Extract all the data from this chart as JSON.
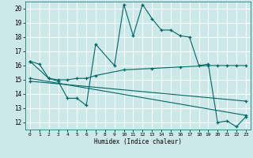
{
  "xlabel": "Humidex (Indice chaleur)",
  "bg_color": "#cce8e8",
  "grid_color": "#ffffff",
  "line_color": "#006666",
  "xlim": [
    -0.5,
    23.5
  ],
  "ylim": [
    11.5,
    20.5
  ],
  "xtick_vals": [
    0,
    1,
    2,
    3,
    4,
    5,
    6,
    7,
    8,
    9,
    10,
    11,
    12,
    13,
    14,
    15,
    16,
    17,
    18,
    19,
    20,
    21,
    22,
    23
  ],
  "xtick_labels": [
    "0",
    "1",
    "2",
    "3",
    "4",
    "5",
    "6",
    "7",
    "8",
    "9",
    "10",
    "11",
    "12",
    "13",
    "14",
    "15",
    "16",
    "17",
    "18",
    "19",
    "20",
    "21",
    "22",
    "23"
  ],
  "ytick_vals": [
    12,
    13,
    14,
    15,
    16,
    17,
    18,
    19,
    20
  ],
  "ytick_labels": [
    "12",
    "13",
    "14",
    "15",
    "16",
    "17",
    "18",
    "19",
    "20"
  ],
  "series": [
    {
      "x": [
        0,
        1,
        2,
        3,
        4,
        5,
        6,
        7,
        9,
        10,
        11,
        12,
        13,
        14,
        15,
        16,
        17,
        18,
        19,
        20,
        21,
        22,
        23
      ],
      "y": [
        16.3,
        16.1,
        15.1,
        14.9,
        13.7,
        13.7,
        13.2,
        17.5,
        16.0,
        20.3,
        18.1,
        20.3,
        19.3,
        18.5,
        18.5,
        18.1,
        18.0,
        16.0,
        16.1,
        12.0,
        12.1,
        11.7,
        12.4
      ]
    },
    {
      "x": [
        0,
        2,
        3,
        4,
        5,
        6,
        7,
        10,
        13,
        16,
        19,
        20,
        21,
        22,
        23
      ],
      "y": [
        16.3,
        15.1,
        15.0,
        15.0,
        15.1,
        15.1,
        15.3,
        15.7,
        15.8,
        15.9,
        16.0,
        16.0,
        16.0,
        16.0,
        16.0
      ]
    },
    {
      "x": [
        0,
        23
      ],
      "y": [
        15.1,
        12.5
      ]
    },
    {
      "x": [
        0,
        23
      ],
      "y": [
        14.9,
        13.5
      ]
    }
  ]
}
